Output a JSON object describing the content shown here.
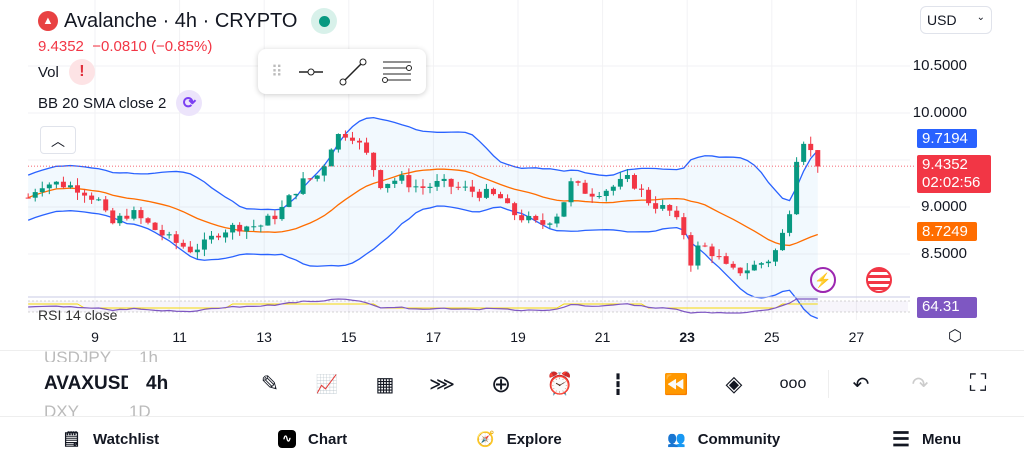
{
  "header": {
    "title": "Avalanche · 4h · CRYPTO",
    "price": "9.4352",
    "change": "−0.0810 (−0.85%)"
  },
  "indicators": {
    "vol": "Vol",
    "bb": "BB 20 SMA close 2",
    "rsi": "RSI 14 close"
  },
  "currency": "USD",
  "price_axis": {
    "labels": [
      "10.5000",
      "10.0000",
      "9.0000",
      "8.5000"
    ]
  },
  "tags": {
    "upper_band": "9.7194",
    "last_price": "9.4352",
    "countdown": "02:02:56",
    "basis": "8.7249",
    "rsi": "64.31"
  },
  "date_axis": [
    "9",
    "11",
    "13",
    "15",
    "17",
    "19",
    "21",
    "23",
    "25",
    "27"
  ],
  "watchlist": {
    "prev": "USDJPY",
    "prev_tf": "1h",
    "current": "AVAXUSD",
    "current_tf": "4h",
    "next": "DXY",
    "next_tf": "1D"
  },
  "bottom_nav": [
    "Watchlist",
    "Chart",
    "Explore",
    "Community",
    "Menu"
  ],
  "colors": {
    "up": "#089981",
    "down": "#f23645",
    "upper": "#2962ff",
    "basis": "#ff6d00",
    "rsi": "#7e57c2"
  },
  "chart_data": {
    "type": "candlestick",
    "x_unit": "day",
    "ylim": [
      8.0,
      10.6
    ],
    "path": [
      [
        7.42,
        9.1
      ],
      [
        7.7,
        9.25
      ],
      [
        8.17,
        9.25
      ],
      [
        8.65,
        9.2
      ],
      [
        9.12,
        9.05
      ],
      [
        9.35,
        8.8
      ],
      [
        9.83,
        8.95
      ],
      [
        10.3,
        8.8
      ],
      [
        10.77,
        8.65
      ],
      [
        11.25,
        8.55
      ],
      [
        11.6,
        8.6
      ],
      [
        11.96,
        8.75
      ],
      [
        12.43,
        8.8
      ],
      [
        12.9,
        8.8
      ],
      [
        13.37,
        8.95
      ],
      [
        13.85,
        9.25
      ],
      [
        14.32,
        9.35
      ],
      [
        14.67,
        9.75
      ],
      [
        15.03,
        9.8
      ],
      [
        15.5,
        9.5
      ],
      [
        15.74,
        9.25
      ],
      [
        16.21,
        9.3
      ],
      [
        16.68,
        9.2
      ],
      [
        17.16,
        9.25
      ],
      [
        17.63,
        9.2
      ],
      [
        18.1,
        9.15
      ],
      [
        18.57,
        9.1
      ],
      [
        18.81,
        8.95
      ],
      [
        19.28,
        8.85
      ],
      [
        19.52,
        8.8
      ],
      [
        19.99,
        8.95
      ],
      [
        20.23,
        9.25
      ],
      [
        20.7,
        9.15
      ],
      [
        21.17,
        9.2
      ],
      [
        21.65,
        9.3
      ],
      [
        22.12,
        9.05
      ],
      [
        22.59,
        8.95
      ],
      [
        22.95,
        8.7
      ],
      [
        23.06,
        8.4
      ],
      [
        23.3,
        8.6
      ],
      [
        23.66,
        8.5
      ],
      [
        24.01,
        8.3
      ],
      [
        24.48,
        8.35
      ],
      [
        24.96,
        8.45
      ],
      [
        25.19,
        8.6
      ],
      [
        25.43,
        9.0
      ],
      [
        25.55,
        9.5
      ],
      [
        25.78,
        9.75
      ],
      [
        25.95,
        9.55
      ],
      [
        26.14,
        9.44
      ]
    ]
  }
}
